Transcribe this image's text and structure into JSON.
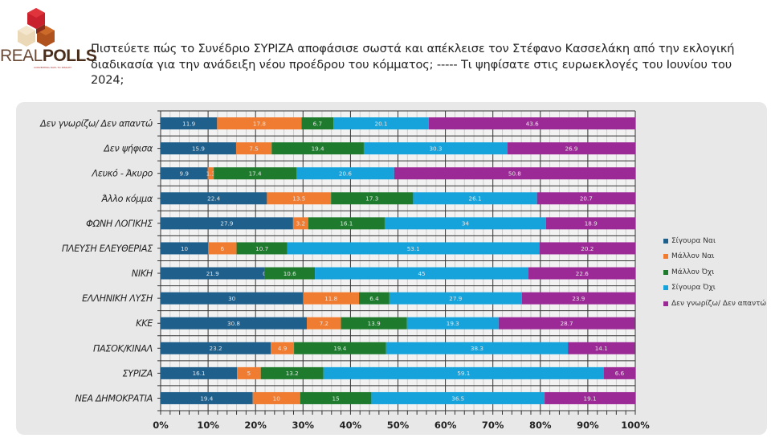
{
  "logo": {
    "text_light": "REAL",
    "text_bold": "POLLS",
    "tagline": "CONVERTING DATA TO INSIGHT"
  },
  "header": {
    "title": "Πιστεύετε πώς το Συνέδριο ΣΥΡΙΖΑ αποφάσισε σωστά και απέκλεισε τον Στέφανο Κασσελάκη από την εκλογική διαδικασία για την ανάδειξη νέου προέδρου του κόμματος; ----- Τι ψηφίσατε στις ευρωεκλογές του Ιουνίου του 2024;"
  },
  "chart_data": {
    "type": "bar",
    "orientation": "horizontal",
    "stacked": "100%",
    "title": "Πιστεύετε πώς το Συνέδριο ΣΥΡΙΖΑ αποφάσισε σωστά και απέκλεισε τον Στέφανο Κασσελάκη από την εκλογική διαδικασία για την ανάδειξη νέου προέδρου του κόμματος; ----- Τι ψηφίσατε στις ευρωεκλογές του Ιουνίου του 2024;",
    "xlabel": "",
    "ylabel": "",
    "xlim": [
      0,
      100
    ],
    "grid": true,
    "legend_position": "right",
    "x_ticks": [
      "0%",
      "10%",
      "20%",
      "30%",
      "40%",
      "50%",
      "60%",
      "70%",
      "80%",
      "90%",
      "100%"
    ],
    "categories": [
      "Δεν γνωρίζω/ Δεν απαντώ",
      "Δεν ψήφισα",
      "Λευκό - Άκυρο",
      "Άλλο κόμμα",
      "ΦΩΝΗ ΛΟΓΙΚΗΣ",
      "ΠΛΕΥΣΗ ΕΛΕΥΘΕΡΙΑΣ",
      "ΝΙΚΗ",
      "ΕΛΛΗΝΙΚΗ ΛΥΣΗ",
      "ΚΚΕ",
      "ΠΑΣΟΚ/ΚΙΝΑΛ",
      "ΣΥΡΙΖΑ",
      "ΝΕΑ ΔΗΜΟΚΡΑΤΙΑ"
    ],
    "series": [
      {
        "name": "Σίγουρα Ναι",
        "color": "#1f5f8b",
        "values": [
          11.9,
          15.9,
          9.9,
          22.4,
          27.9,
          10,
          21.9,
          30,
          30.8,
          23.2,
          16.1,
          19.4
        ]
      },
      {
        "name": "Μάλλον Ναι",
        "color": "#f07c31",
        "values": [
          17.8,
          7.5,
          1.3,
          13.5,
          3.2,
          6,
          0,
          11.8,
          7.2,
          4.9,
          5,
          10
        ]
      },
      {
        "name": "Μάλλον Όχι",
        "color": "#1e7b2e",
        "values": [
          6.7,
          19.4,
          17.4,
          17.3,
          16.1,
          10.7,
          10.6,
          6.4,
          13.9,
          19.4,
          13.2,
          15
        ]
      },
      {
        "name": "Σίγουρα Όχι",
        "color": "#16a3dc",
        "values": [
          20.1,
          30.3,
          20.6,
          26.1,
          34,
          53.1,
          45,
          27.9,
          19.3,
          38.3,
          59.1,
          36.5
        ]
      },
      {
        "name": "Δεν γνωρίζω/ Δεν απαντώ",
        "color": "#9c2a96",
        "values": [
          43.6,
          26.9,
          50.8,
          20.7,
          18.9,
          20.2,
          22.6,
          23.9,
          28.7,
          14.1,
          6.6,
          19.1
        ]
      }
    ]
  }
}
